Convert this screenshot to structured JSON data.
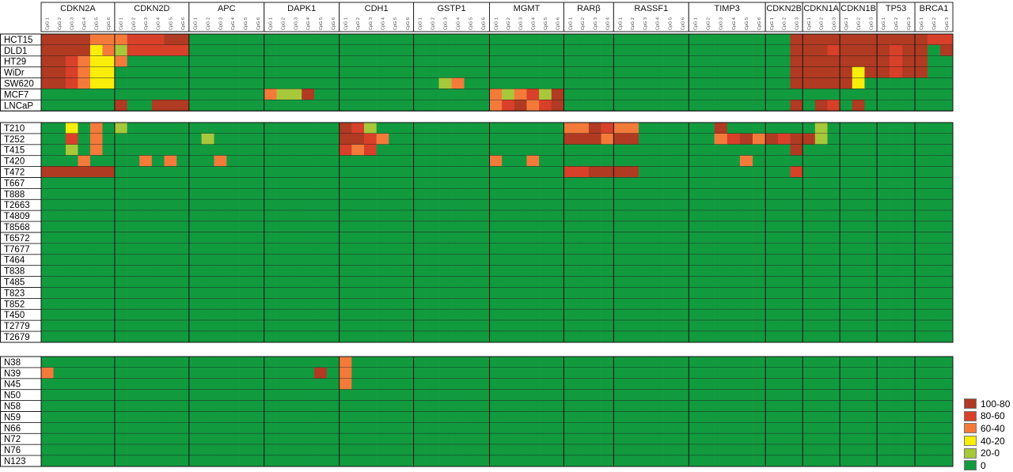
{
  "chart_data": {
    "type": "heatmap",
    "genes": [
      {
        "name": "CDKN2A",
        "sites": 6
      },
      {
        "name": "CDKN2D",
        "sites": 6
      },
      {
        "name": "APC",
        "sites": 6
      },
      {
        "name": "DAPK1",
        "sites": 6
      },
      {
        "name": "CDH1",
        "sites": 6
      },
      {
        "name": "GSTP1",
        "sites": 6
      },
      {
        "name": "MGMT",
        "sites": 6
      },
      {
        "name": "RARβ",
        "sites": 4
      },
      {
        "name": "RASSF1",
        "sites": 6
      },
      {
        "name": "TIMP3",
        "sites": 6
      },
      {
        "name": "CDKN2B",
        "sites": 3
      },
      {
        "name": "CDKN1A",
        "sites": 3
      },
      {
        "name": "CDKN1B",
        "sites": 3
      },
      {
        "name": "TP53",
        "sites": 3
      },
      {
        "name": "BRCA1",
        "sites": 3
      }
    ],
    "site_label_prefix": "CpG",
    "groups": [
      {
        "rows": [
          "HCT15",
          "DLD1",
          "HT29",
          "WiDr",
          "SW620",
          "MCF7",
          "LNCaP"
        ],
        "data": [
          "555533344455000000000000000000000000000000000000000000000000555555555554410555554432244000000000000000000000000000000000",
          "555523144444000000000000000000000000000000000000000000000000555455554550555444445000033000000000000000000000000000000000",
          "554322300000000000000000000000000000000000000000000000000000555555554550000000000000300000000000000000000000000000000000",
          "554322000000000000000000000000000000000000000000000000000000555552554550000000000000050000000000000000000000000000000000",
          "554322000000000000000000000000001300000000000000000000000000555552000000000000000000000000000000000000000000000000000000",
          "000000000000000000311500000000000000313415000000000000000000000000000000000000000000000000000000000000000000000000000000",
          "000000500555000000000000000000000000345345000000000000000000505405000000000000000000000000000000000000000000000000000000"
        ]
      },
      {
        "rows": [
          "T210",
          "T252",
          "T415",
          "T420",
          "T472",
          "T667",
          "T888",
          "T2663",
          "T4809",
          "T8568",
          "T6572",
          "T7677",
          "T464",
          "T838",
          "T485",
          "T823",
          "T852",
          "T450",
          "T2779",
          "T2679"
        ],
        "data": [
          "002030100000000000000000541000000000000000335433000000500000001000000000000000000000000000000000000000000000000000000000",
          "004030000000010000000000554300000000000000555355000000345354551000000000000000000000000000000000000000000000000000000000",
          "001030000000000000000000434000000000000000000000000000000000500000000000000000000000000000000000000000000000000000000000",
          "000300003030003000000000000000000000300300000000000000003000000000000000000000000000000000000000000000000000000000000000",
          "555555000000000000000000000000000000000000445555000000000000400000000000000000000000000000000000000000000000000000000000",
          "000000000000000000000000000000000000000000000000000000000000000000000000000000000000000000000000000000000000000000000000",
          "000000000000000000000000000000000000000000000000000000000000000000000000000000000000000000000000000000000000000000000000",
          "000000000000000000000000000000000000000000000000000000000000000000000000000000000000000000000000000000000000000000000000",
          "000000000000000000000000000000000000000000000000000000000000000000000000000000000000000000000000000000000000000000000000",
          "000000000000000000000000000000000000000000000000000000000000000000000000000000000000000000000000000000000000000000000000",
          "000000000000000000000000000000000000000000000000000000000000000000000000000000000000000000000000000000000000000000000000",
          "000000000000000000000000000000000000000000000000000000000000000000000000000000000000000000000000000000000000000000000000",
          "000000000000000000000000000000000000000000000000000000000000000000000000000000000000000000000000000000000000000000000000",
          "000000000000000000000000000000000000000000000000000000000000000000000000000000000000000000000000000000000000000000000000",
          "000000000000000000000000000000000000000000000000000000000000000000000000000000000000000000000000000000000000000000000000",
          "000000000000000000000000000000000000000000000000000000000000000000000000000000000000000000000000000000000000000000000000",
          "000000000000000000000000000000000000000000000000000000000000000000000000000000000000000000000000000000000000000000000000",
          "000000000000000000000000000000000000000000000000000000000000000000000000000000000000000000000000000000000000000000000000",
          "000000000000000000000000000000000000000000000000000000000000000000000000000000000000000000000000000000000000000000000000",
          "000000000000000000000000000000000000000000000000000000000000000000000000000000000000000000000000000000000000000000000000"
        ]
      },
      {
        "rows": [
          "N38",
          "N39",
          "N45",
          "N50",
          "N58",
          "N59",
          "N66",
          "N72",
          "N76",
          "N123"
        ],
        "data": [
          "000000000000000000000000300000000000000000000000000000000000000000000000000000000000000000000000000000000000000000000000",
          "300000000000000000000050300000000000000000000000000000000000000000000000000000000000000000000000000000000000000000000000",
          "000000000000000000000000300000000000000000000000000000000000000000000000000000000000000000000000000000000000000000000000",
          "000000000000000000000000000000000000000000000000000000000000000000000000000000000000000000000000000000000000000000000000",
          "000000000000000000000000000000000000000000000000000000000000000000000000000000000000000000000000000000000000000000000000",
          "000000000000000000000000000000000000000000000000000000000000000000000000000000000000000000000000000000000000000000000000",
          "000000000000000000000000000000000000000000000000000000000000000000000000000000000000000000000000000000000000000000000000",
          "000000000000000000000000000000000000000000000000000000000000000000000000000000000000000000000000000000000000000000000000",
          "000000000000000000000000000000000000000000000000000000000000000000000000000000000000000000000000000000000000000000000000",
          "000000000000000000000000000000000000000000000000000000000000000000000000000000000000000000000000000000000000000000000000"
        ]
      }
    ],
    "legend": [
      {
        "label": "100-80",
        "color": "#b03a22"
      },
      {
        "label": "80-60",
        "color": "#d8402a"
      },
      {
        "label": "60-40",
        "color": "#f47a3a"
      },
      {
        "label": "40-20",
        "color": "#f9ee0a"
      },
      {
        "label": "20-0",
        "color": "#a7c83a"
      },
      {
        "label": "0",
        "color": "#129a3f"
      }
    ],
    "level_colors": [
      "#129a3f",
      "#a7c83a",
      "#f9ee0a",
      "#f47a3a",
      "#d8402a",
      "#b03a22"
    ]
  }
}
